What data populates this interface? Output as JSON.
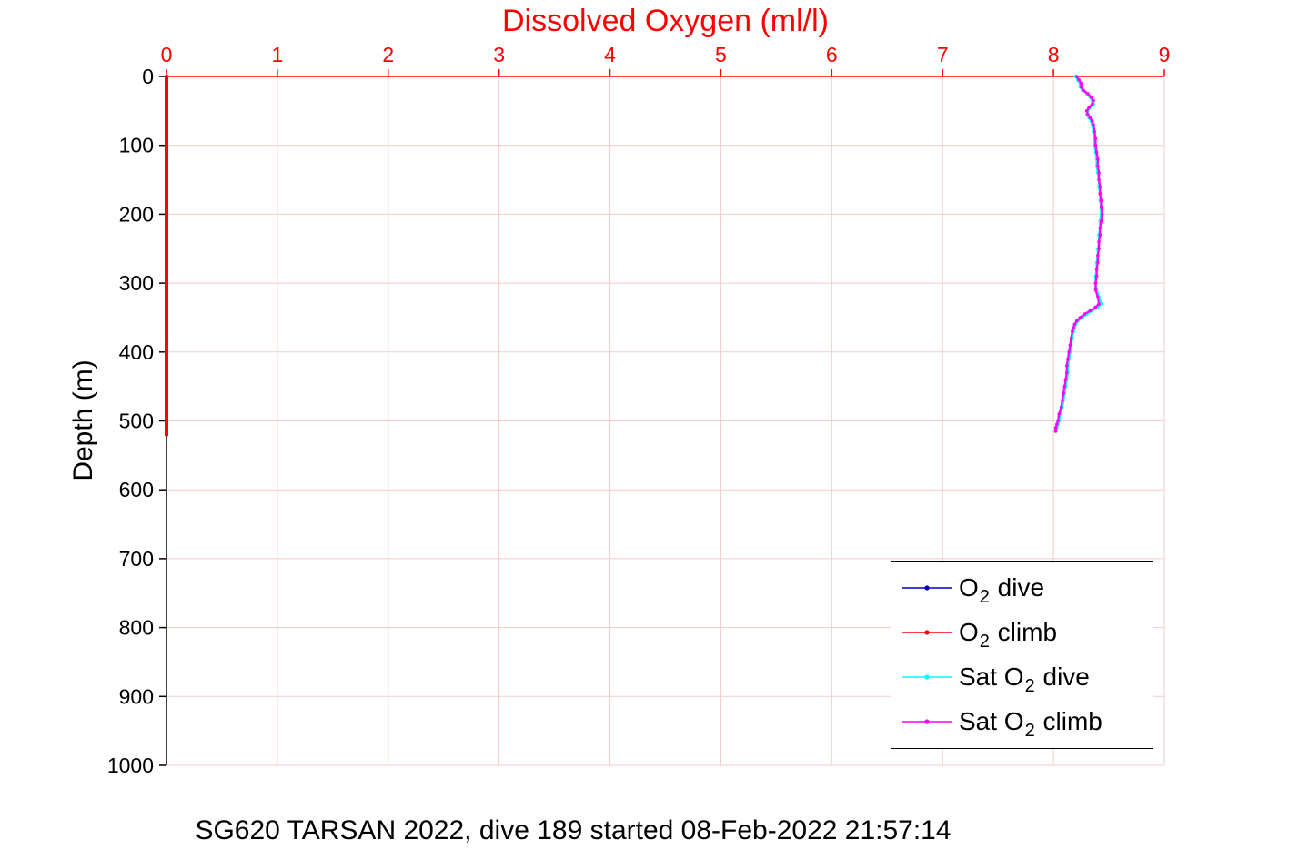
{
  "title": "Dissolved Oxygen (ml/l)",
  "caption": "SG620 TARSAN 2022, dive 189 started 08-Feb-2022 21:57:14",
  "colors": {
    "title": "#ff0000",
    "axis_x": "#ff0000",
    "axis_y": "#000000",
    "grid": "#f2cccc",
    "background": "#ffffff",
    "legend_border": "#000000"
  },
  "legend": {
    "entries": [
      {
        "pre": "O",
        "sub": "2",
        "post": " dive",
        "color": "#0000cc"
      },
      {
        "pre": "O",
        "sub": "2",
        "post": " climb",
        "color": "#ff0000"
      },
      {
        "pre": "Sat O",
        "sub": "2",
        "post": " dive",
        "color": "#00ffff"
      },
      {
        "pre": "Sat O",
        "sub": "2",
        "post": " climb",
        "color": "#ff00ff"
      }
    ]
  },
  "chart_data": {
    "type": "line",
    "title": "Dissolved Oxygen (ml/l)",
    "xlabel": "Dissolved Oxygen (ml/l)",
    "ylabel": "Depth (m)",
    "xlim": [
      0,
      9
    ],
    "ylim": [
      0,
      1000
    ],
    "y_axis_reversed": true,
    "x_axis_location": "top",
    "grid": true,
    "legend_position": "bottom-right-inside",
    "x_ticks": [
      0,
      1,
      2,
      3,
      4,
      5,
      6,
      7,
      8,
      9
    ],
    "y_ticks": [
      0,
      100,
      200,
      300,
      400,
      500,
      600,
      700,
      800,
      900,
      1000
    ],
    "series": [
      {
        "id": "o2-dive",
        "name": "O2 dive",
        "color": "#0000cc",
        "width": 4,
        "markers": false,
        "points": [
          [
            0,
            0
          ],
          [
            520,
            0
          ]
        ]
      },
      {
        "id": "o2-climb",
        "name": "O2 climb",
        "color": "#ff0000",
        "width": 4,
        "markers": false,
        "points": [
          [
            0,
            0
          ],
          [
            520,
            0
          ]
        ]
      },
      {
        "id": "sat-o2-dive",
        "name": "Sat O2 dive",
        "color": "#00ffff",
        "width": 2.4,
        "markers": true,
        "points": [
          [
            0,
            8.2
          ],
          [
            5,
            8.22
          ],
          [
            10,
            8.24
          ],
          [
            15,
            8.24
          ],
          [
            20,
            8.26
          ],
          [
            25,
            8.3
          ],
          [
            30,
            8.33
          ],
          [
            35,
            8.35
          ],
          [
            40,
            8.36
          ],
          [
            45,
            8.33
          ],
          [
            50,
            8.31
          ],
          [
            55,
            8.3
          ],
          [
            60,
            8.32
          ],
          [
            65,
            8.34
          ],
          [
            70,
            8.35
          ],
          [
            80,
            8.36
          ],
          [
            90,
            8.37
          ],
          [
            100,
            8.37
          ],
          [
            110,
            8.38
          ],
          [
            120,
            8.39
          ],
          [
            130,
            8.39
          ],
          [
            140,
            8.4
          ],
          [
            150,
            8.41
          ],
          [
            160,
            8.41
          ],
          [
            170,
            8.42
          ],
          [
            180,
            8.42
          ],
          [
            190,
            8.43
          ],
          [
            200,
            8.43
          ],
          [
            210,
            8.42
          ],
          [
            220,
            8.42
          ],
          [
            230,
            8.41
          ],
          [
            240,
            8.41
          ],
          [
            250,
            8.4
          ],
          [
            260,
            8.4
          ],
          [
            270,
            8.39
          ],
          [
            280,
            8.39
          ],
          [
            290,
            8.38
          ],
          [
            300,
            8.38
          ],
          [
            310,
            8.39
          ],
          [
            320,
            8.41
          ],
          [
            330,
            8.43
          ],
          [
            335,
            8.4
          ],
          [
            340,
            8.35
          ],
          [
            345,
            8.3
          ],
          [
            350,
            8.26
          ],
          [
            355,
            8.22
          ],
          [
            360,
            8.2
          ],
          [
            365,
            8.19
          ],
          [
            370,
            8.18
          ],
          [
            380,
            8.17
          ],
          [
            390,
            8.16
          ],
          [
            400,
            8.15
          ],
          [
            410,
            8.14
          ],
          [
            420,
            8.13
          ],
          [
            430,
            8.13
          ],
          [
            440,
            8.12
          ],
          [
            450,
            8.11
          ],
          [
            460,
            8.1
          ],
          [
            470,
            8.09
          ],
          [
            480,
            8.08
          ],
          [
            490,
            8.06
          ],
          [
            500,
            8.05
          ],
          [
            505,
            8.04
          ],
          [
            510,
            8.03
          ],
          [
            515,
            8.02
          ]
        ]
      },
      {
        "id": "sat-o2-climb",
        "name": "Sat O2 climb",
        "color": "#ff00ff",
        "width": 2.2,
        "markers": true,
        "points": [
          [
            0,
            8.21
          ],
          [
            5,
            8.23
          ],
          [
            10,
            8.25
          ],
          [
            15,
            8.25
          ],
          [
            20,
            8.27
          ],
          [
            25,
            8.31
          ],
          [
            30,
            8.34
          ],
          [
            35,
            8.36
          ],
          [
            40,
            8.35
          ],
          [
            45,
            8.32
          ],
          [
            50,
            8.3
          ],
          [
            55,
            8.31
          ],
          [
            60,
            8.33
          ],
          [
            65,
            8.35
          ],
          [
            70,
            8.36
          ],
          [
            80,
            8.37
          ],
          [
            90,
            8.38
          ],
          [
            100,
            8.38
          ],
          [
            110,
            8.39
          ],
          [
            120,
            8.4
          ],
          [
            130,
            8.4
          ],
          [
            140,
            8.41
          ],
          [
            150,
            8.41
          ],
          [
            160,
            8.42
          ],
          [
            170,
            8.42
          ],
          [
            180,
            8.43
          ],
          [
            190,
            8.43
          ],
          [
            200,
            8.44
          ],
          [
            210,
            8.43
          ],
          [
            220,
            8.42
          ],
          [
            230,
            8.42
          ],
          [
            240,
            8.41
          ],
          [
            250,
            8.41
          ],
          [
            260,
            8.4
          ],
          [
            270,
            8.4
          ],
          [
            280,
            8.39
          ],
          [
            290,
            8.39
          ],
          [
            300,
            8.38
          ],
          [
            310,
            8.38
          ],
          [
            320,
            8.4
          ],
          [
            330,
            8.41
          ],
          [
            335,
            8.38
          ],
          [
            340,
            8.33
          ],
          [
            345,
            8.28
          ],
          [
            350,
            8.24
          ],
          [
            355,
            8.21
          ],
          [
            360,
            8.19
          ],
          [
            365,
            8.18
          ],
          [
            370,
            8.17
          ],
          [
            380,
            8.16
          ],
          [
            390,
            8.15
          ],
          [
            400,
            8.14
          ],
          [
            410,
            8.13
          ],
          [
            420,
            8.12
          ],
          [
            430,
            8.12
          ],
          [
            440,
            8.11
          ],
          [
            450,
            8.1
          ],
          [
            460,
            8.09
          ],
          [
            470,
            8.08
          ],
          [
            480,
            8.07
          ],
          [
            490,
            8.05
          ],
          [
            500,
            8.04
          ],
          [
            505,
            8.03
          ],
          [
            510,
            8.02
          ],
          [
            515,
            8.02
          ]
        ]
      }
    ]
  }
}
